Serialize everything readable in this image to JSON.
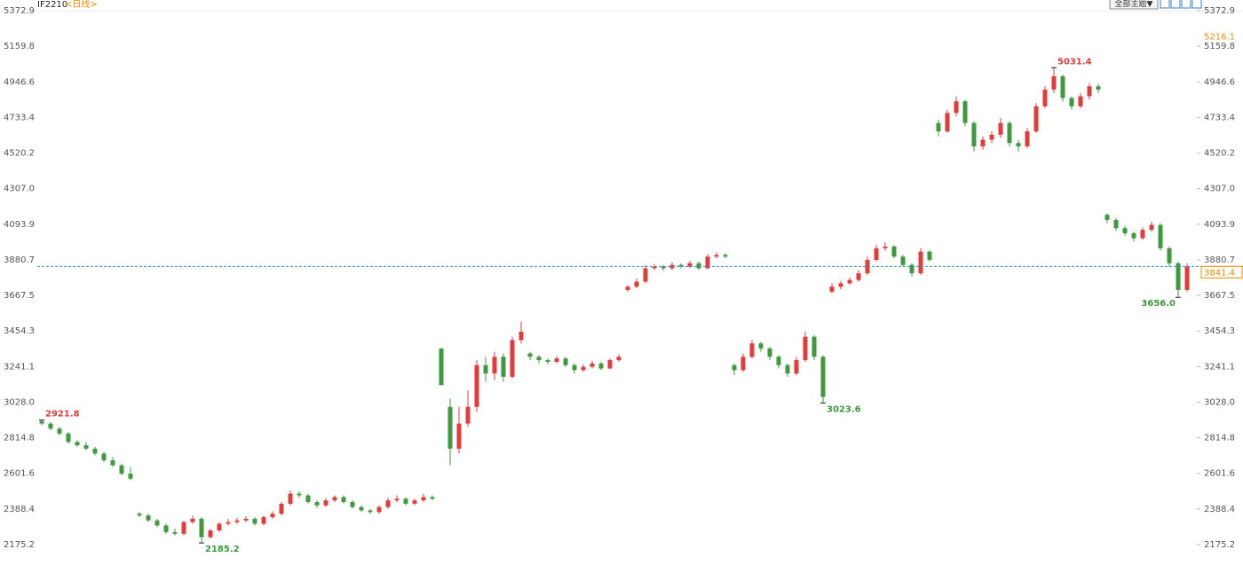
{
  "header": {
    "symbol": "IF2210",
    "period": "<日线>",
    "theme_button": "全部主题▼"
  },
  "chart_data": {
    "type": "candlestick",
    "open": [
      2915,
      2900,
      2870,
      2840,
      2790,
      2770,
      2750,
      2720,
      2680,
      2650,
      2600,
      2360,
      2350,
      2320,
      2290,
      2250,
      2240,
      2310,
      2330,
      2220,
      2260,
      2300,
      2310,
      2320,
      2330,
      2300,
      2340,
      2360,
      2420,
      2480,
      2470,
      2430,
      2410,
      2440,
      2460,
      2430,
      2400,
      2380,
      2370,
      2400,
      2440,
      2450,
      2420,
      2440,
      2460,
      3350,
      3000,
      2750,
      2900,
      3000,
      3250,
      3200,
      3300,
      3180,
      3400,
      3320,
      3300,
      3280,
      3270,
      3290,
      3250,
      3220,
      3240,
      3260,
      3230,
      3280,
      3700,
      3720,
      3750,
      3830,
      3840,
      3830,
      3850,
      3840,
      3860,
      3830,
      3900,
      3910,
      3250,
      3220,
      3300,
      3380,
      3350,
      3300,
      3250,
      3200,
      3280,
      3420,
      3300,
      3690,
      3720,
      3740,
      3760,
      3800,
      3880,
      3950,
      3960,
      3900,
      3850,
      3800,
      3930,
      4700,
      4650,
      4760,
      4830,
      4700,
      4560,
      4600,
      4630,
      4700,
      4580,
      4560,
      4650,
      4800,
      4900,
      4980,
      4850,
      4800,
      4860,
      4920,
      4150,
      4120,
      4070,
      4040,
      4010,
      4060,
      4090,
      3950,
      3860,
      3700
    ],
    "high": [
      2921.8,
      2910,
      2880,
      2850,
      2800,
      2790,
      2760,
      2730,
      2700,
      2660,
      2640,
      2370,
      2360,
      2330,
      2300,
      2270,
      2320,
      2350,
      2340,
      2270,
      2310,
      2330,
      2335,
      2345,
      2340,
      2350,
      2375,
      2430,
      2500,
      2495,
      2480,
      2440,
      2455,
      2470,
      2470,
      2440,
      2410,
      2390,
      2410,
      2455,
      2470,
      2460,
      2450,
      2480,
      2470,
      3350,
      3050,
      3000,
      3100,
      3280,
      3300,
      3330,
      3320,
      3420,
      3510,
      3330,
      3310,
      3290,
      3305,
      3300,
      3260,
      3255,
      3275,
      3270,
      3290,
      3315,
      3730,
      3770,
      3850,
      3855,
      3850,
      3865,
      3860,
      3875,
      3870,
      3915,
      3925,
      3920,
      3260,
      3320,
      3400,
      3390,
      3360,
      3310,
      3260,
      3300,
      3450,
      3430,
      3310,
      3740,
      3755,
      3775,
      3820,
      3900,
      3970,
      3985,
      3970,
      3910,
      3860,
      3950,
      3940,
      4720,
      4780,
      4860,
      4840,
      4710,
      4620,
      4650,
      4730,
      4710,
      4600,
      4670,
      4820,
      4920,
      5031.4,
      4990,
      4860,
      4880,
      4940,
      4935,
      4160,
      4130,
      4085,
      4050,
      4075,
      4110,
      4100,
      3960,
      3870,
      3860
    ],
    "low": [
      2890,
      2860,
      2830,
      2780,
      2760,
      2740,
      2710,
      2670,
      2640,
      2590,
      2560,
      2340,
      2310,
      2280,
      2240,
      2230,
      2230,
      2300,
      2185.2,
      2210,
      2250,
      2290,
      2300,
      2310,
      2290,
      2290,
      2330,
      2350,
      2410,
      2455,
      2420,
      2395,
      2400,
      2430,
      2420,
      2390,
      2370,
      2360,
      2360,
      2390,
      2430,
      2410,
      2410,
      2430,
      2440,
      3130,
      2650,
      2720,
      2880,
      2970,
      3150,
      3160,
      3150,
      3170,
      3380,
      3280,
      3260,
      3255,
      3260,
      3240,
      3200,
      3210,
      3230,
      3220,
      3225,
      3270,
      3690,
      3710,
      3740,
      3820,
      3815,
      3820,
      3830,
      3830,
      3820,
      3825,
      3890,
      3890,
      3190,
      3210,
      3290,
      3330,
      3280,
      3230,
      3180,
      3190,
      3270,
      3280,
      3023.6,
      3680,
      3705,
      3730,
      3750,
      3790,
      3870,
      3935,
      3890,
      3840,
      3780,
      3790,
      3870,
      4620,
      4640,
      4740,
      4680,
      4530,
      4540,
      4580,
      4610,
      4560,
      4530,
      4550,
      4640,
      4790,
      4880,
      4830,
      4780,
      4790,
      4840,
      4880,
      4100,
      4055,
      4025,
      3990,
      4000,
      4050,
      3935,
      3840,
      3656,
      3690
    ],
    "close": [
      2900,
      2870,
      2840,
      2790,
      2770,
      2750,
      2720,
      2680,
      2650,
      2600,
      2570,
      2350,
      2320,
      2290,
      2250,
      2240,
      2310,
      2330,
      2220,
      2260,
      2300,
      2310,
      2320,
      2330,
      2300,
      2340,
      2360,
      2420,
      2480,
      2470,
      2430,
      2410,
      2440,
      2460,
      2430,
      2400,
      2380,
      2370,
      2400,
      2440,
      2450,
      2420,
      2440,
      2460,
      2450,
      3130,
      2750,
      2900,
      3000,
      3250,
      3200,
      3300,
      3180,
      3400,
      3450,
      3300,
      3280,
      3270,
      3290,
      3250,
      3220,
      3240,
      3260,
      3230,
      3280,
      3300,
      3720,
      3750,
      3830,
      3840,
      3830,
      3850,
      3840,
      3860,
      3830,
      3900,
      3910,
      3900,
      3220,
      3300,
      3380,
      3350,
      3300,
      3250,
      3200,
      3280,
      3420,
      3300,
      3060,
      3720,
      3740,
      3760,
      3800,
      3880,
      3950,
      3960,
      3900,
      3850,
      3800,
      3930,
      3880,
      4650,
      4760,
      4830,
      4700,
      4560,
      4600,
      4630,
      4700,
      4580,
      4560,
      4650,
      4800,
      4900,
      4980,
      4850,
      4800,
      4860,
      4920,
      4900,
      4120,
      4070,
      4040,
      4010,
      4060,
      4090,
      3950,
      3860,
      3700,
      3841.4
    ],
    "up_color": "#e23b3b",
    "down_color": "#3d9a3d",
    "ylim": [
      2026.4,
      5436.7
    ],
    "yticks": [
      2175.2,
      2388.4,
      2601.6,
      2814.8,
      {
        "value": 3028.0,
        "label": "3028.0"
      },
      3241.1,
      3454.3,
      3667.5,
      3880.7,
      4093.9,
      {
        "value": 4307.0,
        "label": "4307.0"
      },
      4520.2,
      4733.4,
      4946.6,
      5159.8,
      5372.9
    ],
    "grid": false,
    "annotations": [
      {
        "value": 2921.8,
        "label": "2921.8"
      },
      {
        "value": 2185.2,
        "label": "2185.2"
      },
      {
        "value": 3023.6,
        "label": "3023.6"
      },
      {
        "value": 5031.4,
        "label": "5031.4"
      },
      {
        "value": 3656,
        "label": "3656.0"
      }
    ],
    "cursor_price": 5216.1,
    "last_line_color": "#3a8fd8"
  }
}
